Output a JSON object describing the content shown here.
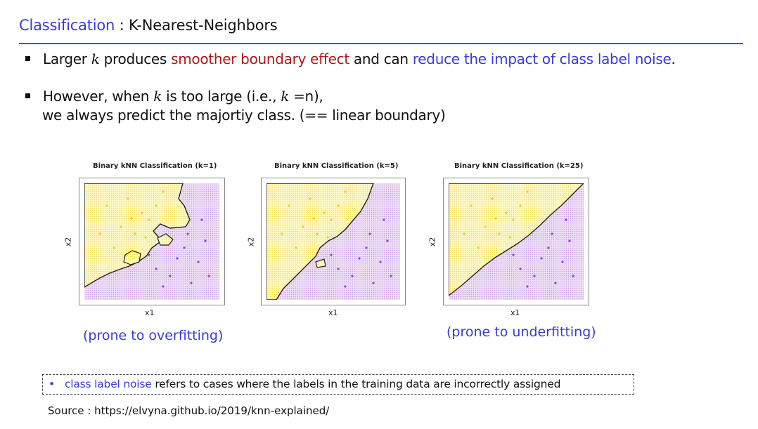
{
  "header": {
    "title_highlight": "Classification",
    "title_rest": " : K-Nearest-Neighbors"
  },
  "bullets": {
    "b1": {
      "pre": "Larger ",
      "k": "k",
      "mid1": " produces ",
      "red": "smoother boundary effect",
      "mid2": " and can ",
      "blue": "reduce the impact of class label noise",
      "end": "."
    },
    "b2": {
      "pre": "However, when  ",
      "k": "k",
      "mid": " is too large (i.e., ",
      "k2": "k",
      "end": " =n),",
      "line2": "we always predict the majortiy class. (== linear boundary)"
    }
  },
  "plots": [
    {
      "title": "Binary kNN Classification (k=1)",
      "xlabel": "x1",
      "ylabel": "x2"
    },
    {
      "title": "Binary kNN Classification (k=5)",
      "xlabel": "x1",
      "ylabel": "x2"
    },
    {
      "title": "Binary kNN Classification (k=25)",
      "xlabel": "x1",
      "ylabel": "x2"
    }
  ],
  "captions": {
    "left": "(prone to overfitting)",
    "right": "(prone to underfitting)"
  },
  "note": {
    "bullet": "•",
    "highlight": "class label noise",
    "rest": " refers to cases where the labels in the training data are incorrectly assigned"
  },
  "source": "Source : https://elvyna.github.io/2019/knn-explained/",
  "colors": {
    "accent_blue": "#3a3ad8",
    "accent_red": "#b01818",
    "yellow_region": "#fbf3a6",
    "purple_region": "#e6cdf1",
    "yellow_point": "#f2cc1a",
    "purple_point": "#9a3fd6"
  }
}
